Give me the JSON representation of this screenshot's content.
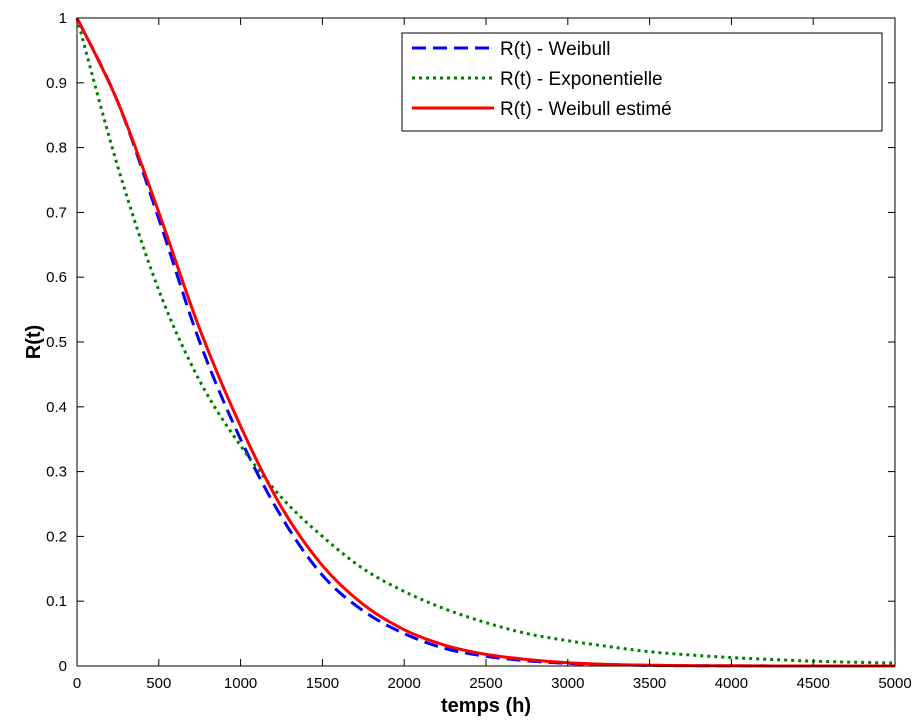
{
  "chart_data": {
    "type": "line",
    "xlabel": "temps (h)",
    "ylabel": "R(t)",
    "xlim": [
      0,
      5000
    ],
    "ylim": [
      0,
      1
    ],
    "xticks": [
      0,
      500,
      1000,
      1500,
      2000,
      2500,
      3000,
      3500,
      4000,
      4500,
      5000
    ],
    "yticks": [
      0,
      0.1,
      0.2,
      0.3,
      0.4,
      0.5,
      0.6,
      0.7,
      0.8,
      0.9,
      1
    ],
    "grid": false,
    "legend_position": "top-right",
    "x": [
      0,
      250,
      500,
      750,
      1000,
      1250,
      1500,
      1750,
      2000,
      2250,
      2500,
      2750,
      3000,
      3250,
      3500,
      3750,
      4000,
      4250,
      4500,
      4750,
      5000
    ],
    "series": [
      {
        "name": "R(t) - Weibull",
        "color": "#0000ff",
        "style": "dashed",
        "values": [
          1.0,
          0.87,
          0.69,
          0.5,
          0.35,
          0.23,
          0.14,
          0.085,
          0.05,
          0.027,
          0.015,
          0.008,
          0.004,
          0.002,
          0.001,
          0.0005,
          0.0002,
          0.0001,
          0.0,
          0.0,
          0.0
        ]
      },
      {
        "name": "R(t) - Exponentielle",
        "color": "#008000",
        "style": "dotted",
        "values": [
          1.0,
          0.77,
          0.58,
          0.44,
          0.34,
          0.26,
          0.2,
          0.15,
          0.115,
          0.088,
          0.067,
          0.05,
          0.039,
          0.03,
          0.022,
          0.017,
          0.013,
          0.01,
          0.0075,
          0.0058,
          0.0045
        ]
      },
      {
        "name": "R(t) - Weibull estimé",
        "color": "#ff0000",
        "style": "solid",
        "values": [
          1.0,
          0.87,
          0.7,
          0.52,
          0.37,
          0.245,
          0.155,
          0.095,
          0.056,
          0.032,
          0.018,
          0.01,
          0.005,
          0.0025,
          0.0012,
          0.0006,
          0.0003,
          0.0001,
          0.0,
          0.0,
          0.0
        ]
      }
    ]
  }
}
